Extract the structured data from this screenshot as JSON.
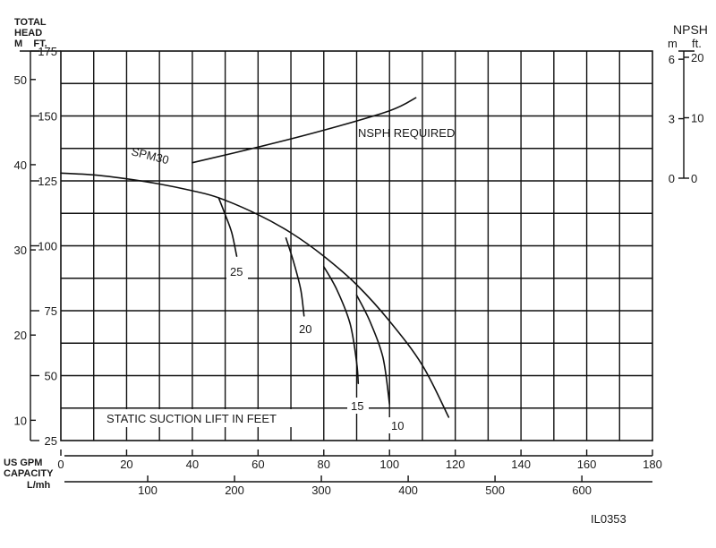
{
  "chart_data": {
    "type": "line",
    "axes": {
      "left_outer": {
        "label_line1": "TOTAL",
        "label_line2": "HEAD",
        "label_line3": "M    FT.",
        "unit": "m",
        "ticks": [
          "10",
          "20",
          "30",
          "40",
          "50"
        ]
      },
      "left_inner": {
        "unit": "ft",
        "ticks": [
          "25",
          "50",
          "75",
          "100",
          "125",
          "150",
          "175"
        ],
        "ylim": [
          25,
          175
        ]
      },
      "x_top": {
        "label": "US GPM",
        "unit": "US gpm",
        "ticks": [
          "0",
          "20",
          "40",
          "60",
          "80",
          "100",
          "120",
          "140",
          "160",
          "180"
        ],
        "xlim": [
          0,
          180
        ]
      },
      "x_bottom": {
        "label": "CAPACITY",
        "label_line2": "L/mh",
        "ticks": [
          "100",
          "200",
          "300",
          "400",
          "500",
          "600"
        ]
      },
      "right": {
        "title": "NPSH",
        "m_label": "m",
        "ft_label": "ft.",
        "m_ticks": [
          "6",
          "3",
          "0"
        ],
        "ft_ticks": [
          "20",
          "10",
          "0"
        ]
      }
    },
    "grid": true,
    "series": [
      {
        "name": "SPM30",
        "x": [
          0,
          10,
          20,
          30,
          40,
          48,
          60,
          70,
          80,
          90,
          100,
          110,
          118
        ],
        "y": [
          128,
          127.3,
          125.8,
          123.8,
          121.2,
          118.5,
          112,
          105,
          96,
          85,
          71,
          54,
          34
        ]
      },
      {
        "name": "25",
        "x": [
          48,
          50,
          52,
          53.5
        ],
        "y": [
          118.5,
          112,
          105,
          96
        ]
      },
      {
        "name": "20",
        "x": [
          68.5,
          71,
          73,
          74
        ],
        "y": [
          103,
          93,
          83,
          73
        ]
      },
      {
        "name": "15",
        "x": [
          80,
          84,
          88,
          90,
          90.5
        ],
        "y": [
          92,
          83,
          70,
          55,
          47
        ]
      },
      {
        "name": "10",
        "x": [
          90,
          94,
          98,
          100
        ],
        "y": [
          81,
          71,
          57,
          39
        ]
      },
      {
        "name": "NSPH REQUIRED",
        "x": [
          40,
          60,
          80,
          100,
          108
        ],
        "y": [
          132,
          138,
          144.5,
          152,
          157
        ]
      }
    ],
    "annotations": {
      "curve_label": "SPM30",
      "nsph_label": "NSPH REQUIRED",
      "static_label": "STATIC SUCTION LIFT IN FEET",
      "suction_labels": [
        "25",
        "20",
        "15",
        "10"
      ]
    }
  },
  "figure_id": "IL0353"
}
